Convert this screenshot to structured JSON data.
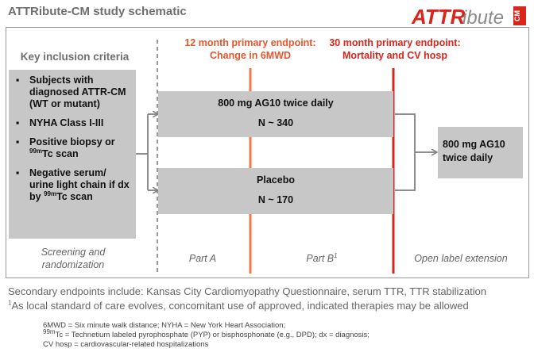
{
  "title": "ATTRibute-CM study schematic",
  "logo": {
    "text_red": "ATTR",
    "text_gray": "ibute",
    "text_small": "CM"
  },
  "inclusion": {
    "heading": "Key inclusion criteria",
    "items": [
      {
        "text": "Subjects with diagnosed ATTR-CM (WT or mutant)"
      },
      {
        "text": "NYHA Class I-III"
      },
      {
        "pre": "Positive biopsy or ",
        "sup": "99m",
        "post": "Tc scan"
      },
      {
        "pre": "Negative serum/ urine light chain if dx by ",
        "sup": "99m",
        "post": "Tc scan"
      }
    ],
    "bullet": "▪"
  },
  "arms": {
    "drug": {
      "line1": "800 mg AG10 twice daily",
      "line2": "N ~ 340"
    },
    "placebo": {
      "line1": "Placebo",
      "line2": "N ~ 170"
    }
  },
  "open_label": {
    "line1": "800 mg AG10",
    "line2": "twice daily"
  },
  "endpoints": {
    "primary12": {
      "line1": "12 month primary endpoint:",
      "line2": "Change in 6MWD"
    },
    "primary30": {
      "line1": "30 month primary endpoint:",
      "line2": "Mortality and CV hosp"
    }
  },
  "phases": {
    "screening": {
      "line1": "Screening and",
      "line2": "randomization"
    },
    "part_a": "Part A",
    "part_b": "Part B",
    "part_b_sup": "1",
    "ole": "Open label extension"
  },
  "secondary": "Secondary endpoints include: Kansas City Cardiomyopathy Questionnaire, serum TTR, TTR stabilization",
  "footnote1": {
    "sup": "1",
    "text": "As local standard of care evolves, concomitant use of approved, indicated therapies may be allowed"
  },
  "abbreviations": {
    "line1": "6MWD = Six minute walk distance; NYHA = New York Heart Association;",
    "line2_sup": "99m",
    "line2": "Tc = Technetium labeled pyrophosphate (PYP) or bisphosphonate (e.g., DPD); dx = diagnosis;",
    "line3": "CV hosp = cardiovascular-related hospitalizations"
  },
  "colors": {
    "orange_line": "#f0784a",
    "red_line": "#d8261c",
    "box_gray": "#c7c7c7",
    "arrow_gray": "#7f7f7f"
  }
}
